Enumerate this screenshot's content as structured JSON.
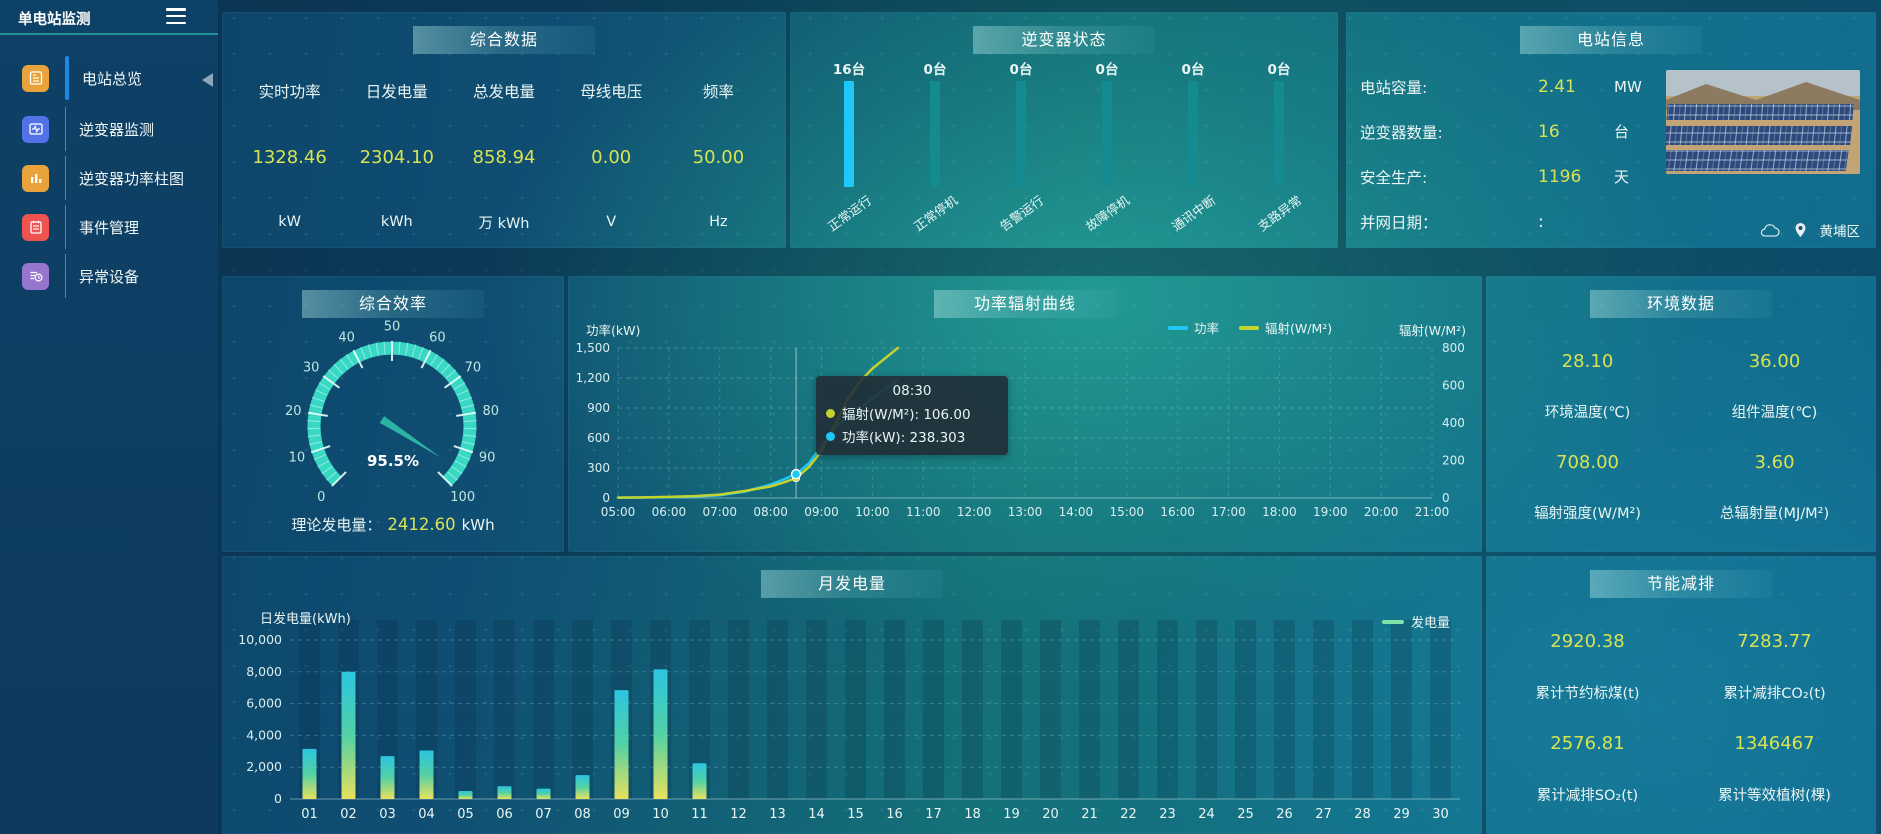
{
  "app": {
    "title": "单电站监测"
  },
  "sidebar": {
    "items": [
      {
        "id": "station-overview",
        "label": "电站总览",
        "active": true,
        "icon": "journal-icon",
        "icon_color": "#e8a33d"
      },
      {
        "id": "inverter-monitor",
        "label": "逆变器监测",
        "active": false,
        "icon": "monitor-pulse-icon",
        "icon_color": "#5472e8"
      },
      {
        "id": "inverter-power-bars",
        "label": "逆变器功率柱图",
        "active": false,
        "icon": "bar-chart-icon",
        "icon_color": "#e8a33d"
      },
      {
        "id": "event-management",
        "label": "事件管理",
        "active": false,
        "icon": "notebook-icon",
        "icon_color": "#ef5350"
      },
      {
        "id": "abnormal-devices",
        "label": "异常设备",
        "active": false,
        "icon": "device-list-clock-icon",
        "icon_color": "#9575cd"
      }
    ]
  },
  "panels": {
    "summary": {
      "title": "综合数据",
      "metrics": [
        {
          "label": "实时功率",
          "value": "1328.46",
          "unit": "kW"
        },
        {
          "label": "日发电量",
          "value": "2304.10",
          "unit": "kWh"
        },
        {
          "label": "总发电量",
          "value": "858.94",
          "unit": "万 kWh"
        },
        {
          "label": "母线电压",
          "value": "0.00",
          "unit": "V"
        },
        {
          "label": "频率",
          "value": "50.00",
          "unit": "Hz"
        }
      ]
    },
    "inverter_status": {
      "title": "逆变器状态"
    },
    "station": {
      "title": "电站信息",
      "rows": [
        {
          "label": "电站容量:",
          "value": "2.41",
          "unit": "MW"
        },
        {
          "label": "逆变器数量:",
          "value": "16",
          "unit": "台"
        },
        {
          "label": "安全生产:",
          "value": "1196",
          "unit": "天"
        },
        {
          "label": "并网日期：",
          "value": ":",
          "unit": ""
        }
      ],
      "location": "黄埔区"
    },
    "gauge": {
      "title": "综合效率",
      "value_label": "95.5%",
      "theory": {
        "label": "理论发电量：",
        "value": "2412.60",
        "unit": "kWh"
      }
    },
    "line": {
      "title": "功率辐射曲线",
      "left_axis_title": "功率(kW)",
      "right_axis_title": "辐射(W/M²)",
      "legend": [
        "功率",
        "辐射(W/M²)"
      ],
      "tooltip": {
        "time": "08:30",
        "rows": [
          {
            "text": "辐射(W/M²): 106.00",
            "color": "#c6d32f"
          },
          {
            "text": "功率(kW): 238.303",
            "color": "#1ec9f8"
          }
        ]
      }
    },
    "env": {
      "title": "环境数据",
      "metrics": [
        {
          "value": "28.10",
          "label": "环境温度(℃)"
        },
        {
          "value": "36.00",
          "label": "组件温度(℃)"
        },
        {
          "value": "708.00",
          "label": "辐射强度(W/M²)"
        },
        {
          "value": "3.60",
          "label": "总辐射量(MJ/M²)"
        }
      ]
    },
    "bar": {
      "title": "月发电量",
      "ylabel": "日发电量(kWh)",
      "legend": "发电量"
    },
    "energy": {
      "title": "节能减排",
      "metrics": [
        {
          "value": "2920.38",
          "label": "累计节约标煤(t)"
        },
        {
          "value": "7283.77",
          "label": "累计减排CO₂(t)"
        },
        {
          "value": "2576.81",
          "label": "累计减排SO₂(t)"
        },
        {
          "value": "1346467",
          "label": "累计等效植树(棵)"
        }
      ]
    }
  },
  "colors": {
    "accent_yellow": "#d8e353",
    "power_line": "#1ec9f8",
    "radiation_line": "#c6d32f",
    "generation_legend": "#7fe3a8",
    "inverter_active": "#1fc8fa",
    "inverter_idle": "#138b91",
    "gauge_band": "#38d8c5"
  },
  "chart_data": [
    {
      "id": "inverter_status",
      "type": "bar",
      "title": "逆变器状态",
      "categories": [
        "正常运行",
        "正常停机",
        "告警运行",
        "故障停机",
        "通讯中断",
        "支路异常"
      ],
      "values": [
        16,
        0,
        0,
        0,
        0,
        0
      ],
      "unit": "台",
      "highlight_index": 0,
      "note": "equal-height status pillars; first pillar highlighted blue"
    },
    {
      "id": "efficiency_gauge",
      "type": "gauge",
      "title": "综合效率",
      "value": 95.5,
      "min": 0,
      "max": 100,
      "major_tick": 10,
      "label": "95.5%"
    },
    {
      "id": "power_radiation",
      "type": "line",
      "title": "功率辐射曲线",
      "x_labels": [
        "05:00",
        "06:00",
        "07:00",
        "08:00",
        "09:00",
        "10:00",
        "11:00",
        "12:00",
        "13:00",
        "14:00",
        "15:00",
        "16:00",
        "17:00",
        "18:00",
        "19:00",
        "20:00",
        "21:00"
      ],
      "x_range_minutes": 960,
      "y_left": {
        "label": "功率(kW)",
        "min": 0,
        "max": 1500,
        "ticks": [
          "1,500",
          "1,200",
          "900",
          "600",
          "300",
          "0"
        ]
      },
      "y_right": {
        "label": "辐射(W/M²)",
        "min": 0,
        "max": 800,
        "ticks": [
          "800",
          "600",
          "400",
          "200",
          "0"
        ]
      },
      "series": [
        {
          "name": "功率",
          "axis": "left",
          "color": "#1ec9f8",
          "points": [
            [
              0,
              4
            ],
            [
              30,
              5
            ],
            [
              60,
              8
            ],
            [
              90,
              14
            ],
            [
              120,
              28
            ],
            [
              150,
              65
            ],
            [
              180,
              135
            ],
            [
              195,
              185
            ],
            [
              210,
              238.3
            ],
            [
              225,
              345
            ],
            [
              240,
              520
            ],
            [
              258,
              720
            ],
            [
              285,
              900
            ],
            [
              310,
              1060
            ],
            [
              330,
              1180
            ]
          ]
        },
        {
          "name": "辐射(W/M²)",
          "axis": "right",
          "color": "#c6d32f",
          "points": [
            [
              0,
              2
            ],
            [
              30,
              3
            ],
            [
              60,
              6
            ],
            [
              90,
              10
            ],
            [
              120,
              18
            ],
            [
              150,
              38
            ],
            [
              180,
              62
            ],
            [
              195,
              82
            ],
            [
              210,
              106
            ],
            [
              225,
              165
            ],
            [
              240,
              250
            ],
            [
              255,
              380
            ],
            [
              270,
              520
            ],
            [
              285,
              620
            ],
            [
              300,
              690
            ],
            [
              315,
              745
            ],
            [
              330,
              800
            ]
          ]
        }
      ],
      "hover": {
        "time": "08:30",
        "minutes": 210,
        "power": 238.303,
        "radiation": 106.0
      },
      "grid": "dashed"
    },
    {
      "id": "monthly_generation",
      "type": "bar",
      "title": "月发电量",
      "ylabel": "日发电量(kWh)",
      "legend": "发电量",
      "categories": [
        "01",
        "02",
        "03",
        "04",
        "05",
        "06",
        "07",
        "08",
        "09",
        "10",
        "11",
        "12",
        "13",
        "14",
        "15",
        "16",
        "17",
        "18",
        "19",
        "20",
        "21",
        "22",
        "23",
        "24",
        "25",
        "26",
        "27",
        "28",
        "29",
        "30"
      ],
      "values": [
        3150,
        8000,
        2700,
        3050,
        500,
        800,
        650,
        1500,
        6850,
        8150,
        2250,
        0,
        0,
        0,
        0,
        0,
        0,
        0,
        0,
        0,
        0,
        0,
        0,
        0,
        0,
        0,
        0,
        0,
        0,
        0
      ],
      "ylim": [
        0,
        10000
      ],
      "yticks": [
        "10,000",
        "8,000",
        "6,000",
        "4,000",
        "2,000",
        "0"
      ]
    }
  ]
}
